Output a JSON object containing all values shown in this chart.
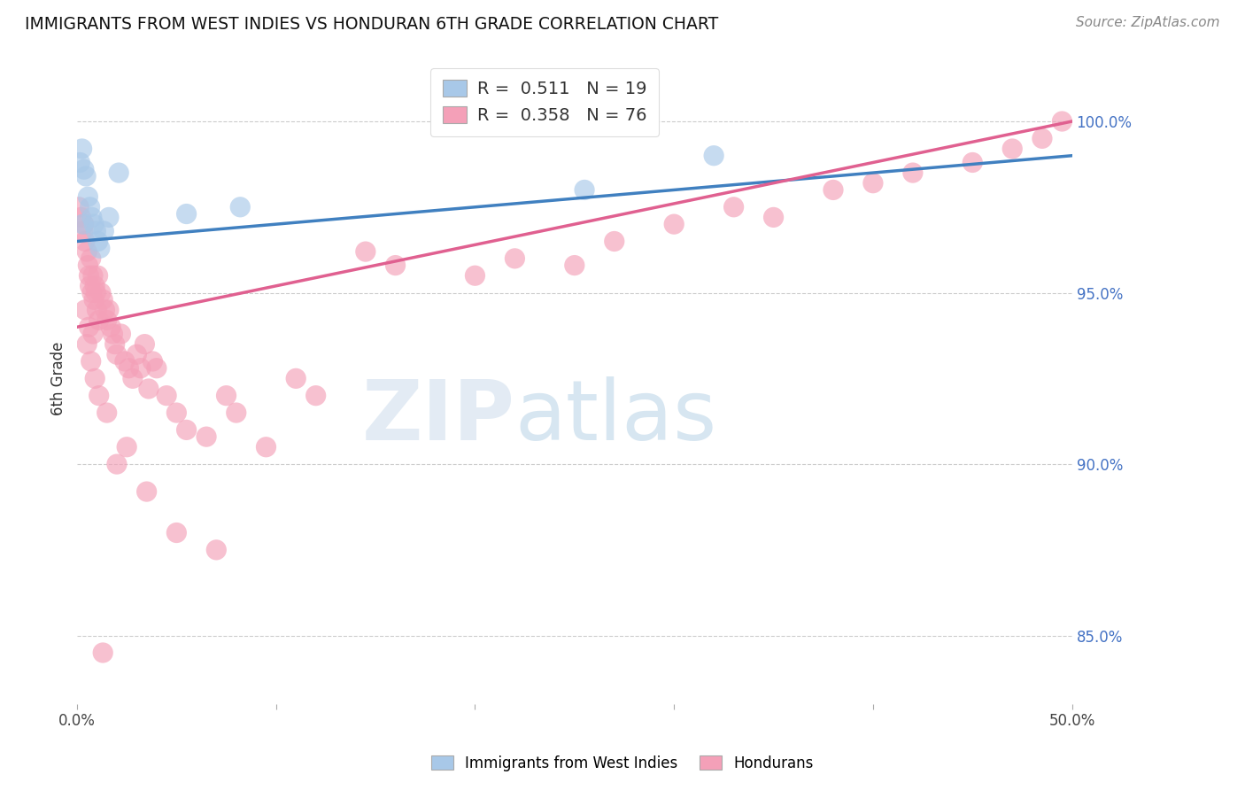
{
  "title": "IMMIGRANTS FROM WEST INDIES VS HONDURAN 6TH GRADE CORRELATION CHART",
  "source": "Source: ZipAtlas.com",
  "ylabel": "6th Grade",
  "yticks": [
    85.0,
    90.0,
    95.0,
    100.0
  ],
  "ytick_labels": [
    "85.0%",
    "90.0%",
    "95.0%",
    "100.0%"
  ],
  "xlim": [
    0.0,
    50.0
  ],
  "ylim": [
    83.0,
    102.0
  ],
  "legend_label1": "Immigrants from West Indies",
  "legend_label2": "Hondurans",
  "blue_color": "#a8c8e8",
  "pink_color": "#f4a0b8",
  "blue_line_color": "#4080c0",
  "pink_line_color": "#e06090",
  "watermark_zip": "ZIP",
  "watermark_atlas": "atlas",
  "bg_color": "#ffffff",
  "grid_color": "#cccccc",
  "blue_x": [
    0.15,
    0.25,
    0.35,
    0.45,
    0.55,
    0.65,
    0.75,
    0.85,
    0.95,
    1.05,
    1.15,
    1.35,
    1.6,
    2.1,
    5.5,
    8.2,
    25.5,
    32.0,
    0.3
  ],
  "blue_y": [
    98.8,
    99.2,
    98.6,
    98.4,
    97.8,
    97.5,
    97.2,
    97.0,
    96.8,
    96.5,
    96.3,
    96.8,
    97.2,
    98.5,
    97.3,
    97.5,
    98.0,
    99.0,
    97.0
  ],
  "pink_x": [
    0.1,
    0.2,
    0.3,
    0.35,
    0.4,
    0.5,
    0.55,
    0.6,
    0.65,
    0.7,
    0.75,
    0.8,
    0.85,
    0.9,
    0.95,
    1.0,
    1.05,
    1.1,
    1.2,
    1.3,
    1.4,
    1.5,
    1.6,
    1.7,
    1.8,
    1.9,
    2.0,
    2.2,
    2.4,
    2.6,
    2.8,
    3.0,
    3.2,
    3.4,
    3.6,
    3.8,
    4.0,
    4.5,
    5.0,
    5.5,
    6.5,
    7.5,
    8.0,
    9.5,
    11.0,
    12.0,
    14.5,
    16.0,
    20.0,
    22.0,
    25.0,
    27.0,
    30.0,
    33.0,
    35.0,
    38.0,
    40.0,
    42.0,
    45.0,
    47.0,
    48.5,
    49.5,
    0.5,
    0.7,
    0.9,
    1.1,
    1.5,
    2.0,
    2.5,
    3.5,
    5.0,
    7.0,
    0.4,
    0.6,
    0.8,
    1.3
  ],
  "pink_y": [
    97.5,
    97.2,
    96.8,
    97.0,
    96.5,
    96.2,
    95.8,
    95.5,
    95.2,
    96.0,
    95.0,
    95.5,
    94.8,
    95.2,
    95.0,
    94.5,
    95.5,
    94.2,
    95.0,
    94.8,
    94.5,
    94.2,
    94.5,
    94.0,
    93.8,
    93.5,
    93.2,
    93.8,
    93.0,
    92.8,
    92.5,
    93.2,
    92.8,
    93.5,
    92.2,
    93.0,
    92.8,
    92.0,
    91.5,
    91.0,
    90.8,
    92.0,
    91.5,
    90.5,
    92.5,
    92.0,
    96.2,
    95.8,
    95.5,
    96.0,
    95.8,
    96.5,
    97.0,
    97.5,
    97.2,
    98.0,
    98.2,
    98.5,
    98.8,
    99.2,
    99.5,
    100.0,
    93.5,
    93.0,
    92.5,
    92.0,
    91.5,
    90.0,
    90.5,
    89.2,
    88.0,
    87.5,
    94.5,
    94.0,
    93.8,
    84.5
  ]
}
